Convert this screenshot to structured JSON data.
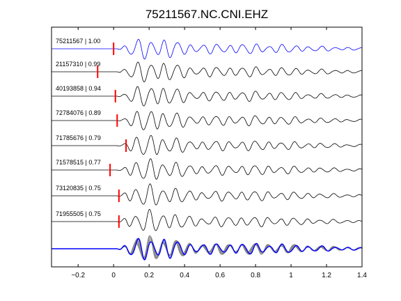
{
  "chart_data": {
    "type": "line",
    "title": "75211567.NC.CNI.EHZ",
    "xlabel": "",
    "ylabel": "",
    "xlim": [
      -0.35,
      1.4
    ],
    "x_ticks": [
      {
        "value": -0.2,
        "label": "−0.2"
      },
      {
        "value": 0,
        "label": "0"
      },
      {
        "value": 0.2,
        "label": "0.2"
      },
      {
        "value": 0.4,
        "label": "0.4"
      },
      {
        "value": 0.6,
        "label": "0.6"
      },
      {
        "value": 0.8,
        "label": "0.8"
      },
      {
        "value": 1,
        "label": "1"
      },
      {
        "value": 1.2,
        "label": "1.2"
      },
      {
        "value": 1.4,
        "label": "1.4"
      }
    ],
    "grid": false,
    "legend": "none",
    "series": [
      {
        "name": "75211567 | 1.00",
        "pick_time": 0.0,
        "color": "#0000ff",
        "seed": 1
      },
      {
        "name": "21157310 | 0.99",
        "pick_time": -0.09,
        "color": "#000000",
        "seed": 2
      },
      {
        "name": "40193858 | 0.94",
        "pick_time": 0.01,
        "color": "#000000",
        "seed": 3
      },
      {
        "name": "72784076 | 0.89",
        "pick_time": 0.02,
        "color": "#000000",
        "seed": 4
      },
      {
        "name": "71785676 | 0.79",
        "pick_time": 0.07,
        "color": "#000000",
        "seed": 5
      },
      {
        "name": "71578515 | 0.77",
        "pick_time": -0.02,
        "color": "#000000",
        "seed": 6
      },
      {
        "name": "73120835 | 0.75",
        "pick_time": 0.03,
        "color": "#000000",
        "seed": 7
      },
      {
        "name": "71955505 | 0.75",
        "pick_time": 0.03,
        "color": "#000000",
        "seed": 8
      }
    ],
    "stack": {
      "reference_color": "#0000ff",
      "overlay_color": "#808080"
    },
    "pick_color": "#ff0000",
    "axis_color": "#000000"
  }
}
